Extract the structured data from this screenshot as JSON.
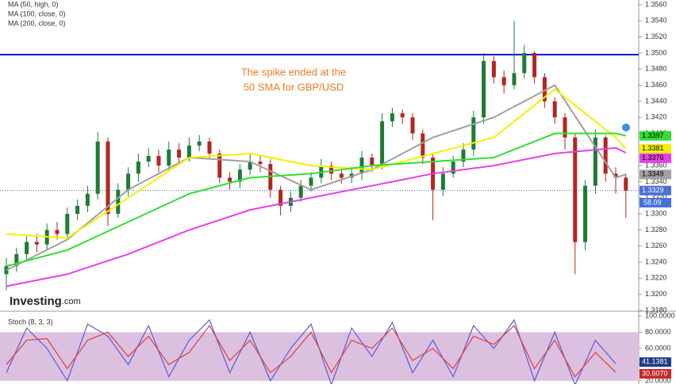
{
  "chart_data": {
    "type": "candlestick",
    "legend": [
      "MA (50, high, 0)",
      "MA (100, close, 0)",
      "MA (200, close, 0)"
    ],
    "annotation": [
      "The spike ended at the",
      "50 SMA for GBP/USD"
    ],
    "annotation_color": "#f47b20",
    "logo": [
      "Investing",
      ".com"
    ],
    "up_color": "#1e7b34",
    "down_color": "#b3261e",
    "ylim": [
      1.318,
      1.356
    ],
    "yticks": [
      {
        "value": 1.318,
        "label": "1.3180"
      },
      {
        "value": 1.32,
        "label": "1.3200"
      },
      {
        "value": 1.322,
        "label": "1.3220"
      },
      {
        "value": 1.324,
        "label": "1.3240"
      },
      {
        "value": 1.326,
        "label": "1.3260"
      },
      {
        "value": 1.328,
        "label": "1.3280"
      },
      {
        "value": 1.33,
        "label": "1.3300"
      },
      {
        "value": 1.332,
        "label": "1.3320"
      },
      {
        "value": 1.334,
        "label": "1.3340"
      },
      {
        "value": 1.336,
        "label": "1.3360"
      },
      {
        "value": 1.338,
        "label": "1.3380"
      },
      {
        "value": 1.34,
        "label": "1.3400"
      },
      {
        "value": 1.342,
        "label": "1.3420"
      },
      {
        "value": 1.344,
        "label": "1.3440"
      },
      {
        "value": 1.346,
        "label": "1.3460"
      },
      {
        "value": 1.348,
        "label": "1.3480"
      },
      {
        "value": 1.35,
        "label": "1.3500"
      },
      {
        "value": 1.352,
        "label": "1.3520"
      },
      {
        "value": 1.354,
        "label": "1.3540"
      },
      {
        "value": 1.356,
        "label": "1.3560"
      }
    ],
    "hline": {
      "value": 1.3498,
      "color": "#1010d0"
    },
    "open": [
      1.3225,
      1.3235,
      1.325,
      1.3265,
      1.3262,
      1.328,
      1.3275,
      1.33,
      1.331,
      1.3325,
      1.339,
      1.33,
      1.333,
      1.335,
      1.3365,
      1.3372,
      1.336,
      1.338,
      1.337,
      1.3385,
      1.339,
      1.3375,
      1.3345,
      1.334,
      1.3355,
      1.3365,
      1.3362,
      1.333,
      1.331,
      1.332,
      1.3335,
      1.3345,
      1.336,
      1.335,
      1.3345,
      1.335,
      1.337,
      1.336,
      1.3415,
      1.3425,
      1.342,
      1.34,
      1.337,
      1.333,
      1.335,
      1.3365,
      1.338,
      1.342,
      1.349,
      1.347,
      1.346,
      1.3475,
      1.35,
      1.347,
      1.344,
      1.342,
      1.3395,
      1.3265,
      1.3335,
      1.3395,
      1.335,
      1.3345
    ],
    "high": [
      1.3245,
      1.3258,
      1.3272,
      1.3275,
      1.3288,
      1.329,
      1.3308,
      1.3318,
      1.3335,
      1.3402,
      1.3395,
      1.3338,
      1.3358,
      1.3375,
      1.3382,
      1.338,
      1.339,
      1.3388,
      1.3395,
      1.3398,
      1.3395,
      1.338,
      1.3352,
      1.3362,
      1.3375,
      1.3372,
      1.3368,
      1.3335,
      1.3328,
      1.3342,
      1.3352,
      1.3368,
      1.3365,
      1.3356,
      1.3358,
      1.3378,
      1.3375,
      1.3425,
      1.3432,
      1.343,
      1.3425,
      1.3405,
      1.3375,
      1.3358,
      1.3372,
      1.3388,
      1.3428,
      1.35,
      1.3496,
      1.3478,
      1.354,
      1.351,
      1.3502,
      1.3475,
      1.3445,
      1.3425,
      1.34,
      1.3342,
      1.3405,
      1.3398,
      1.3358,
      1.335
    ],
    "low": [
      1.3205,
      1.3228,
      1.3242,
      1.3252,
      1.3255,
      1.3268,
      1.327,
      1.3292,
      1.3302,
      1.3318,
      1.3285,
      1.3295,
      1.3322,
      1.334,
      1.3358,
      1.3352,
      1.3355,
      1.3362,
      1.3365,
      1.3378,
      1.3368,
      1.3338,
      1.333,
      1.3332,
      1.3348,
      1.3352,
      1.332,
      1.3298,
      1.3302,
      1.3315,
      1.3328,
      1.3338,
      1.3342,
      1.3338,
      1.3338,
      1.3342,
      1.3352,
      1.3355,
      1.3408,
      1.3412,
      1.3392,
      1.3362,
      1.3292,
      1.3322,
      1.3345,
      1.3358,
      1.3372,
      1.3412,
      1.3462,
      1.345,
      1.3455,
      1.3468,
      1.3462,
      1.3432,
      1.3412,
      1.338,
      1.3225,
      1.3255,
      1.3325,
      1.334,
      1.3325,
      1.3295
    ],
    "close": [
      1.3235,
      1.325,
      1.3265,
      1.3262,
      1.328,
      1.3275,
      1.33,
      1.331,
      1.3325,
      1.339,
      1.33,
      1.333,
      1.335,
      1.3365,
      1.3372,
      1.336,
      1.338,
      1.337,
      1.3385,
      1.339,
      1.3375,
      1.3345,
      1.334,
      1.3355,
      1.3365,
      1.3362,
      1.333,
      1.331,
      1.332,
      1.3335,
      1.3345,
      1.336,
      1.335,
      1.3345,
      1.335,
      1.337,
      1.336,
      1.3415,
      1.3425,
      1.342,
      1.34,
      1.337,
      1.333,
      1.335,
      1.3365,
      1.338,
      1.342,
      1.349,
      1.347,
      1.346,
      1.3475,
      1.35,
      1.347,
      1.344,
      1.342,
      1.3395,
      1.3265,
      1.3335,
      1.3395,
      1.335,
      1.3345,
      1.3329
    ],
    "ma_x": [
      0,
      6,
      12,
      18,
      24,
      30,
      36,
      42,
      48,
      54,
      60,
      61
    ],
    "series": [
      {
        "color": "#a0a0a0",
        "values": [
          1.323,
          1.3268,
          1.333,
          1.337,
          1.3365,
          1.333,
          1.3355,
          1.3395,
          1.342,
          1.346,
          1.3345,
          1.3349
        ],
        "tag": 1.3349
      },
      {
        "name": "MA (50, high, 0)",
        "color": "#f5f000",
        "values": [
          1.3275,
          1.327,
          1.332,
          1.337,
          1.3375,
          1.336,
          1.3355,
          1.3375,
          1.3395,
          1.3455,
          1.3395,
          1.3381
        ],
        "tag": 1.3381
      },
      {
        "name": "MA (100, close, 0)",
        "color": "#33dd33",
        "values": [
          1.3235,
          1.3255,
          1.329,
          1.3325,
          1.3345,
          1.335,
          1.336,
          1.3365,
          1.337,
          1.34,
          1.34,
          1.3397
        ],
        "tag": 1.3397
      },
      {
        "name": "MA (200, close, 0)",
        "color": "#e640e6",
        "values": [
          1.321,
          1.3225,
          1.325,
          1.328,
          1.3305,
          1.332,
          1.3335,
          1.335,
          1.336,
          1.3375,
          1.3382,
          1.3376
        ],
        "tag": 1.3376
      }
    ],
    "last_price": {
      "value": 1.3329,
      "color": "#4a6fd8"
    },
    "timer": "58.09",
    "stoch": {
      "title": "Stoch (8, 3, 3)",
      "ylim": [
        16,
        100
      ],
      "band": [
        20,
        80
      ],
      "band_color": "#dcc0e0",
      "yticks": [
        {
          "value": 20,
          "label": "20.0000"
        },
        {
          "value": 40,
          "label": "40.0000"
        },
        {
          "value": 60,
          "label": "60.0000"
        },
        {
          "value": 80,
          "label": "80.0000"
        },
        {
          "value": 100,
          "label": "100.0000"
        }
      ],
      "x": [
        0,
        2,
        4,
        6,
        8,
        10,
        12,
        14,
        16,
        18,
        20,
        22,
        24,
        26,
        28,
        30,
        32,
        34,
        36,
        38,
        40,
        42,
        44,
        46,
        48,
        50,
        52,
        54,
        56,
        58,
        60
      ],
      "series": [
        {
          "color": "#5b5bd6",
          "values": [
            30,
            85,
            60,
            20,
            90,
            75,
            40,
            88,
            25,
            70,
            95,
            30,
            80,
            20,
            60,
            90,
            15,
            85,
            50,
            92,
            30,
            70,
            25,
            88,
            60,
            95,
            20,
            80,
            15,
            70,
            41.1381
          ],
          "tag": 41.1381,
          "tag_color": "#1f3a8a"
        },
        {
          "color": "#e0403a",
          "values": [
            40,
            70,
            72,
            35,
            70,
            80,
            50,
            75,
            40,
            55,
            88,
            45,
            70,
            30,
            50,
            80,
            30,
            70,
            60,
            85,
            45,
            60,
            35,
            75,
            65,
            88,
            35,
            70,
            25,
            55,
            30.607
          ],
          "tag": {
            "value": 30.607,
            "label": "30.6070"
          },
          "tag_color": "#c62828"
        }
      ]
    }
  }
}
